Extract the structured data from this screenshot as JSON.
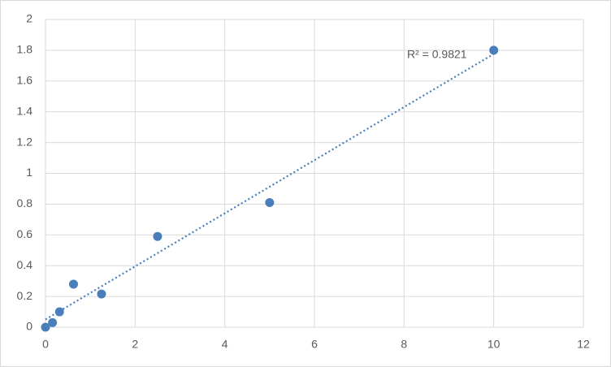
{
  "chart_data": {
    "type": "scatter",
    "x": [
      0,
      0.156,
      0.3125,
      0.625,
      1.25,
      2.5,
      5,
      10
    ],
    "series": [
      {
        "color": "#4a7ebb",
        "values": [
          0,
          0.03,
          0.1,
          0.28,
          0.216,
          0.59,
          0.81,
          1.8
        ]
      }
    ],
    "xlim": [
      0,
      12
    ],
    "xticks": [
      0,
      2,
      4,
      6,
      8,
      10,
      12
    ],
    "ylim": [
      0,
      2
    ],
    "yticks": [
      0,
      0.2,
      0.4,
      0.6,
      0.8,
      1,
      1.2,
      1.4,
      1.6,
      1.8,
      2
    ],
    "grid": true,
    "trendline": "linear",
    "annotation": "R² = 0.9821"
  }
}
